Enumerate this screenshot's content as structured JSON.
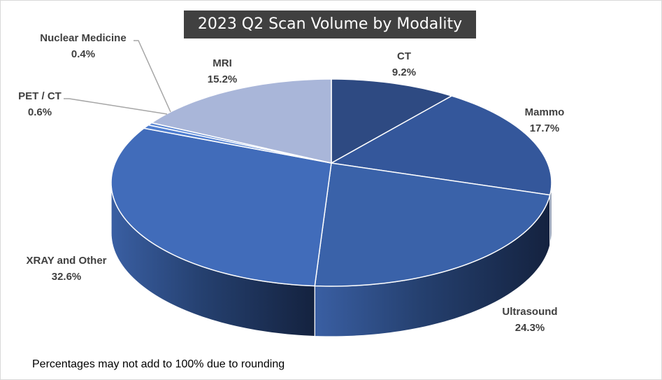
{
  "chart_data": {
    "type": "pie",
    "style": "3d",
    "title": "2023 Q2 Scan Volume by Modality",
    "slices": [
      {
        "label": "CT",
        "value": 9.2,
        "display": "9.2%",
        "color": "#2e4a82"
      },
      {
        "label": "Mammo",
        "value": 17.7,
        "display": "17.7%",
        "color": "#34579b"
      },
      {
        "label": "Ultrasound",
        "value": 24.3,
        "display": "24.3%",
        "color": "#3a62a9"
      },
      {
        "label": "XRAY and Other",
        "value": 32.6,
        "display": "32.6%",
        "color": "#416cba"
      },
      {
        "label": "PET / CT",
        "value": 0.6,
        "display": "0.6%",
        "color": "#4f7ed0"
      },
      {
        "label": "Nuclear Medicine",
        "value": 0.4,
        "display": "0.4%",
        "color": "#5a86d3"
      },
      {
        "label": "MRI",
        "value": 15.2,
        "display": "15.2%",
        "color": "#a9b6d9"
      }
    ],
    "legend": "none",
    "footnote": "Percentages may not add to 100% due to rounding"
  }
}
